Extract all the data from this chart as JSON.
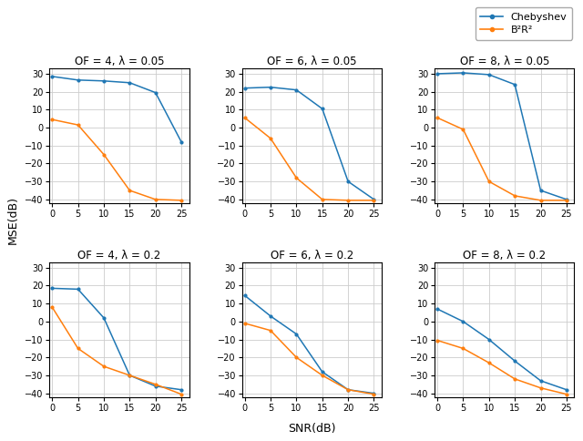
{
  "snr": [
    0,
    5,
    10,
    15,
    20,
    25
  ],
  "subplots": [
    {
      "title": "OF = 4, λ = 0.05",
      "chebyshev": [
        28.5,
        26.5,
        26.0,
        25.0,
        19.5,
        -8.0
      ],
      "b2r2": [
        4.5,
        1.5,
        -15.0,
        -35.0,
        -40.0,
        -40.5
      ]
    },
    {
      "title": "OF = 6, λ = 0.05",
      "chebyshev": [
        22.0,
        22.5,
        21.0,
        10.5,
        -30.0,
        -40.0
      ],
      "b2r2": [
        5.5,
        -6.0,
        -28.0,
        -40.0,
        -40.5,
        -40.5
      ]
    },
    {
      "title": "OF = 8, λ = 0.05",
      "chebyshev": [
        30.0,
        30.5,
        29.5,
        24.0,
        -35.0,
        -40.0
      ],
      "b2r2": [
        5.5,
        -1.0,
        -30.0,
        -38.0,
        -40.5,
        -40.5
      ]
    },
    {
      "title": "OF = 4, λ = 0.2",
      "chebyshev": [
        18.5,
        18.0,
        2.0,
        -30.0,
        -36.0,
        -38.0
      ],
      "b2r2": [
        8.0,
        -15.0,
        -25.0,
        -30.0,
        -35.0,
        -40.5
      ]
    },
    {
      "title": "OF = 6, λ = 0.2",
      "chebyshev": [
        14.5,
        3.0,
        -7.0,
        -28.0,
        -38.0,
        -40.0
      ],
      "b2r2": [
        -1.0,
        -5.0,
        -20.0,
        -30.0,
        -38.0,
        -40.5
      ]
    },
    {
      "title": "OF = 8, λ = 0.2",
      "chebyshev": [
        7.0,
        0.0,
        -10.0,
        -22.0,
        -33.0,
        -38.0
      ],
      "b2r2": [
        -10.5,
        -15.0,
        -23.0,
        -32.0,
        -37.0,
        -40.5
      ]
    }
  ],
  "blue_color": "#1f77b4",
  "orange_color": "#ff7f0e",
  "ylabel": "MSE(dB)",
  "xlabel": "SNR(dB)",
  "ylim": [
    -42,
    33
  ],
  "yticks": [
    -40,
    -30,
    -20,
    -10,
    0,
    10,
    20,
    30
  ],
  "xticks": [
    0,
    5,
    10,
    15,
    20,
    25
  ],
  "legend_chebyshev": "Chebyshev",
  "legend_b2r2": "B²R²"
}
